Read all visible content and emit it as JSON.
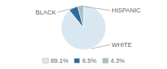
{
  "chart_data": {
    "type": "pie",
    "categories": [
      "WHITE",
      "BLACK",
      "HISPANIC"
    ],
    "values": [
      89.1,
      6.5,
      4.3
    ],
    "value_labels": [
      "89.1%",
      "6.5%",
      "4.3%"
    ],
    "colors": [
      "#d9e8f0",
      "#2e6b9e",
      "#a8bfc8"
    ],
    "legend": "bottom"
  }
}
